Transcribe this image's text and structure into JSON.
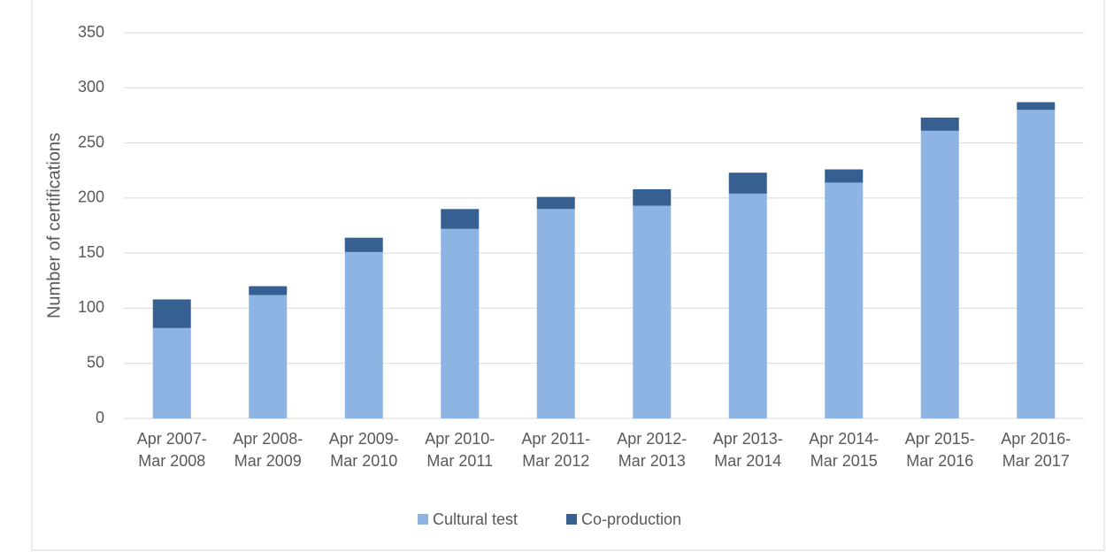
{
  "chart_data": {
    "type": "stacked_bar",
    "y_label": "Number of certifications",
    "categories": [
      "Apr 2007-Mar 2008",
      "Apr 2008-Mar 2009",
      "Apr 2009-Mar 2010",
      "Apr 2010-Mar 2011",
      "Apr 2011-Mar 2012",
      "Apr 2012-Mar 2013",
      "Apr 2013-Mar 2014",
      "Apr 2014-Mar 2015",
      "Apr 2015-Mar 2016",
      "Apr 2016-Mar 2017"
    ],
    "series": [
      {
        "name": "Cultural test",
        "color": "#8eb4e3",
        "values": [
          82,
          112,
          151,
          172,
          190,
          193,
          204,
          214,
          261,
          280
        ]
      },
      {
        "name": "Co-production",
        "color": "#366092",
        "values": [
          26,
          8,
          13,
          18,
          11,
          15,
          19,
          12,
          12,
          7
        ]
      }
    ],
    "ylim": [
      0,
      350
    ],
    "yticks": [
      0,
      50,
      100,
      150,
      200,
      250,
      300,
      350
    ],
    "grid": true,
    "legend": "bottom"
  }
}
